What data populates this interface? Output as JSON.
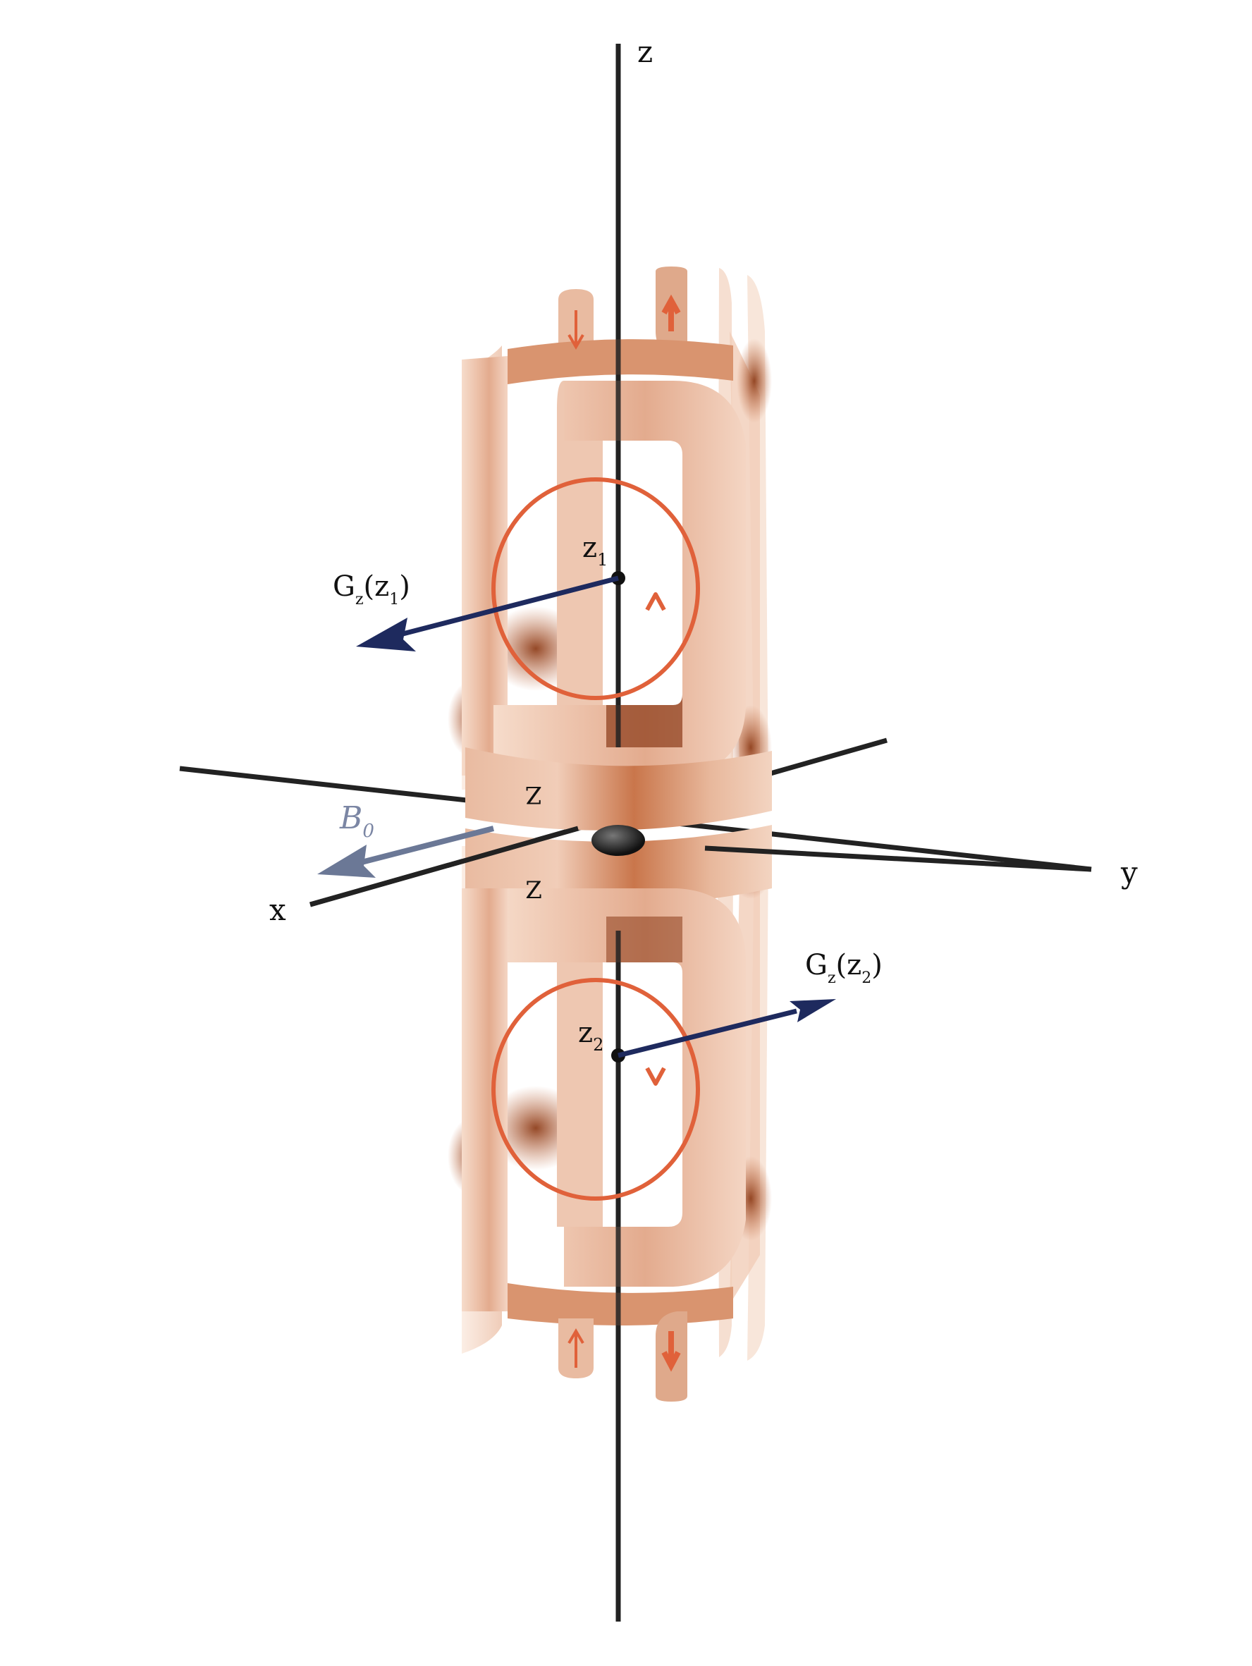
{
  "axes": {
    "x": "x",
    "y": "y",
    "z": "z"
  },
  "field": {
    "b0": "B",
    "b0_sub": "0"
  },
  "points": {
    "z1": {
      "main": "z",
      "sub": "1"
    },
    "z2": {
      "main": "z",
      "sub": "2"
    }
  },
  "gradients": {
    "g1": {
      "open": "G",
      "sub": "z",
      "mid": "(z",
      "arg_sub": "1",
      "close": ")"
    },
    "g2": {
      "open": "G",
      "sub": "z",
      "mid": "(z",
      "arg_sub": "2",
      "close": ")"
    }
  },
  "coil_marks": {
    "upper": "Z",
    "lower": "Z"
  },
  "colors": {
    "axis": "#222222",
    "copper_light": "#f3d2bf",
    "copper_mid": "#e7b49a",
    "copper_dark": "#a8552c",
    "current_loop": "#e0613a",
    "gradient_arrow": "#1e2a5e",
    "b0_arrow": "#6b7896"
  }
}
